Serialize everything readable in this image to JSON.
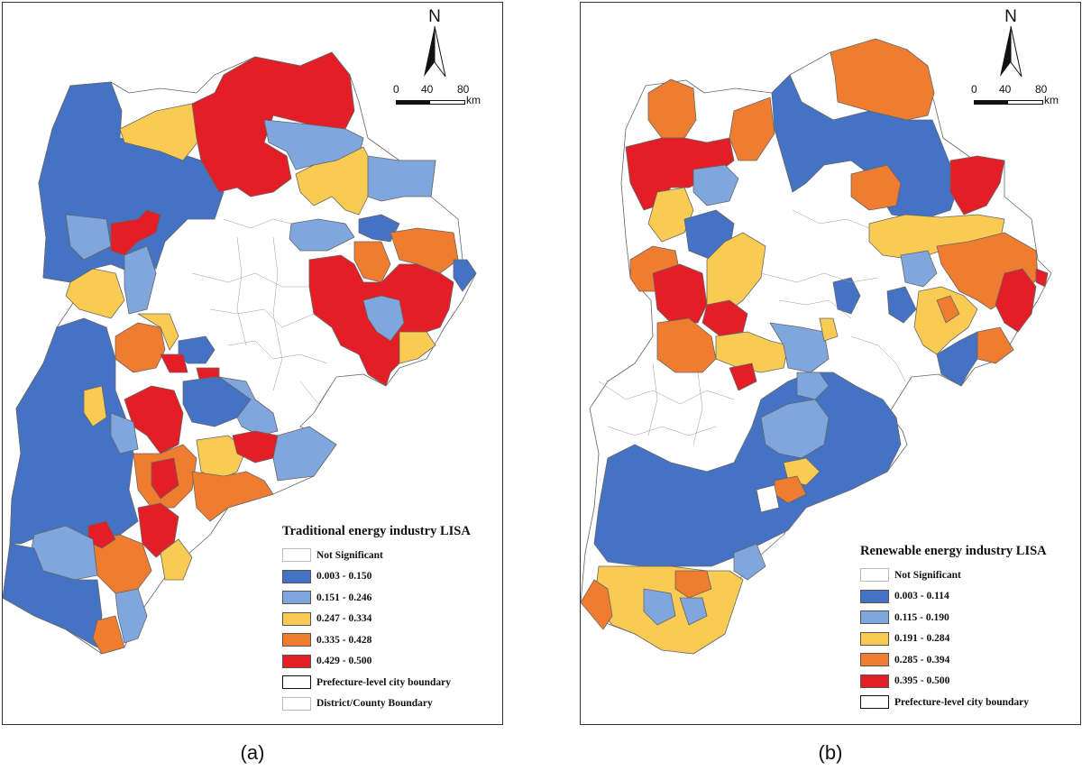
{
  "captions": {
    "a": "(a)",
    "b": "(b)"
  },
  "north_label": "N",
  "scale": {
    "ticks": [
      "0",
      "40",
      "80"
    ],
    "unit": "km"
  },
  "colors": {
    "not_significant": "#ffffff",
    "class1": "#4472c4",
    "class2": "#7fa7dd",
    "class3": "#f9cb53",
    "class4": "#f07c30",
    "class5": "#e31e26",
    "boundary": "#666666"
  },
  "map_a": {
    "legend_title": "Traditional energy industry LISA",
    "legend_items": [
      {
        "label": "Not Significant",
        "color": "#ffffff"
      },
      {
        "label": "0.003 - 0.150",
        "color": "#4472c4"
      },
      {
        "label": "0.151 - 0.246",
        "color": "#7fa7dd"
      },
      {
        "label": "0.247 - 0.334",
        "color": "#f9cb53"
      },
      {
        "label": "0.335 - 0.428",
        "color": "#f07c30"
      },
      {
        "label": "0.429 - 0.500",
        "color": "#e31e26"
      },
      {
        "label": "Prefecture-level city boundary",
        "color": "#ffffff"
      },
      {
        "label": "District/County Boundary",
        "color": "#ffffff"
      }
    ]
  },
  "map_b": {
    "legend_title": "Renewable energy industry LISA",
    "legend_items": [
      {
        "label": "Not Significant",
        "color": "#ffffff"
      },
      {
        "label": "0.003 - 0.114",
        "color": "#4472c4"
      },
      {
        "label": "0.115 - 0.190",
        "color": "#7fa7dd"
      },
      {
        "label": "0.191 - 0.284",
        "color": "#f9cb53"
      },
      {
        "label": "0.285 - 0.394",
        "color": "#f07c30"
      },
      {
        "label": "0.395 - 0.500",
        "color": "#e31e26"
      },
      {
        "label": "Prefecture-level city boundary",
        "color": "#ffffff"
      }
    ]
  }
}
